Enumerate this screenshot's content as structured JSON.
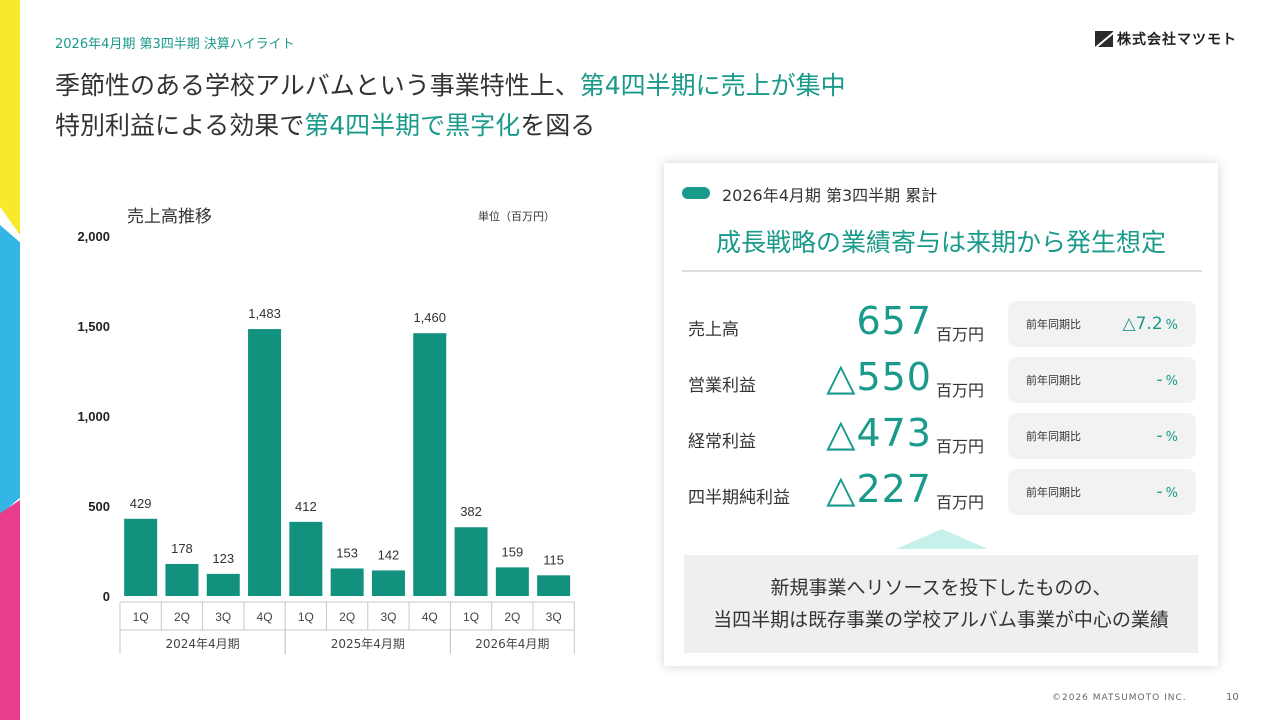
{
  "header": {
    "subtitle": "2026年4月期 第3四半期 決算ハイライト",
    "company": "株式会社マツモト"
  },
  "title": {
    "line1_a": "季節性のある学校アルバムという事業特性上、",
    "line1_b": "第4四半期に売上が集中",
    "line2_a": "特別利益による効果で",
    "line2_b": "第4四半期で黒字化",
    "line2_c": "を図る"
  },
  "chart_data": {
    "type": "bar",
    "title": "売上高推移",
    "unit": "単位（百万円）",
    "ylim": [
      0,
      2000
    ],
    "yticks": [
      "0",
      "500",
      "1,000",
      "1,500",
      "2,000"
    ],
    "ytick_values": [
      0,
      500,
      1000,
      1500,
      2000
    ],
    "categories": [
      "1Q",
      "2Q",
      "3Q",
      "4Q",
      "1Q",
      "2Q",
      "3Q",
      "4Q",
      "1Q",
      "2Q",
      "3Q"
    ],
    "values": [
      429,
      178,
      123,
      1483,
      412,
      153,
      142,
      1460,
      382,
      159,
      115
    ],
    "value_labels": [
      "429",
      "178",
      "123",
      "1,483",
      "412",
      "153",
      "142",
      "1,460",
      "382",
      "159",
      "115"
    ],
    "groups": [
      {
        "label": "2024年4月期",
        "count": 4
      },
      {
        "label": "2025年4月期",
        "count": 4
      },
      {
        "label": "2026年4月期",
        "count": 3
      }
    ],
    "bar_color": "#12917f",
    "grid": false
  },
  "panel": {
    "subtitle": "2026年4月期 第3四半期 累計",
    "headline": "成長戦略の業績寄与は来期から発生想定",
    "rows": [
      {
        "label": "売上高",
        "value": "657",
        "unit": "百万円",
        "yoy_label": "前年同期比",
        "yoy_value": "△7.2",
        "yoy_pct": "%"
      },
      {
        "label": "営業利益",
        "value": "△550",
        "unit": "百万円",
        "yoy_label": "前年同期比",
        "yoy_value": "-",
        "yoy_pct": "%"
      },
      {
        "label": "経常利益",
        "value": "△473",
        "unit": "百万円",
        "yoy_label": "前年同期比",
        "yoy_value": "-",
        "yoy_pct": "%"
      },
      {
        "label": "四半期純利益",
        "value": "△227",
        "unit": "百万円",
        "yoy_label": "前年同期比",
        "yoy_value": "-",
        "yoy_pct": "%"
      }
    ],
    "note_line1": "新規事業へリソースを投下したものの、",
    "note_line2": "当四半期は既存事業の学校アルバム事業が中心の業績"
  },
  "footer": {
    "copyright": "©2026  MATSUMOTO INC.",
    "page": "10"
  },
  "colors": {
    "accent": "#1a9a8a",
    "stripe_yellow": "#f7e92b",
    "stripe_blue": "#33b6e6",
    "stripe_pink": "#e83d8f"
  }
}
